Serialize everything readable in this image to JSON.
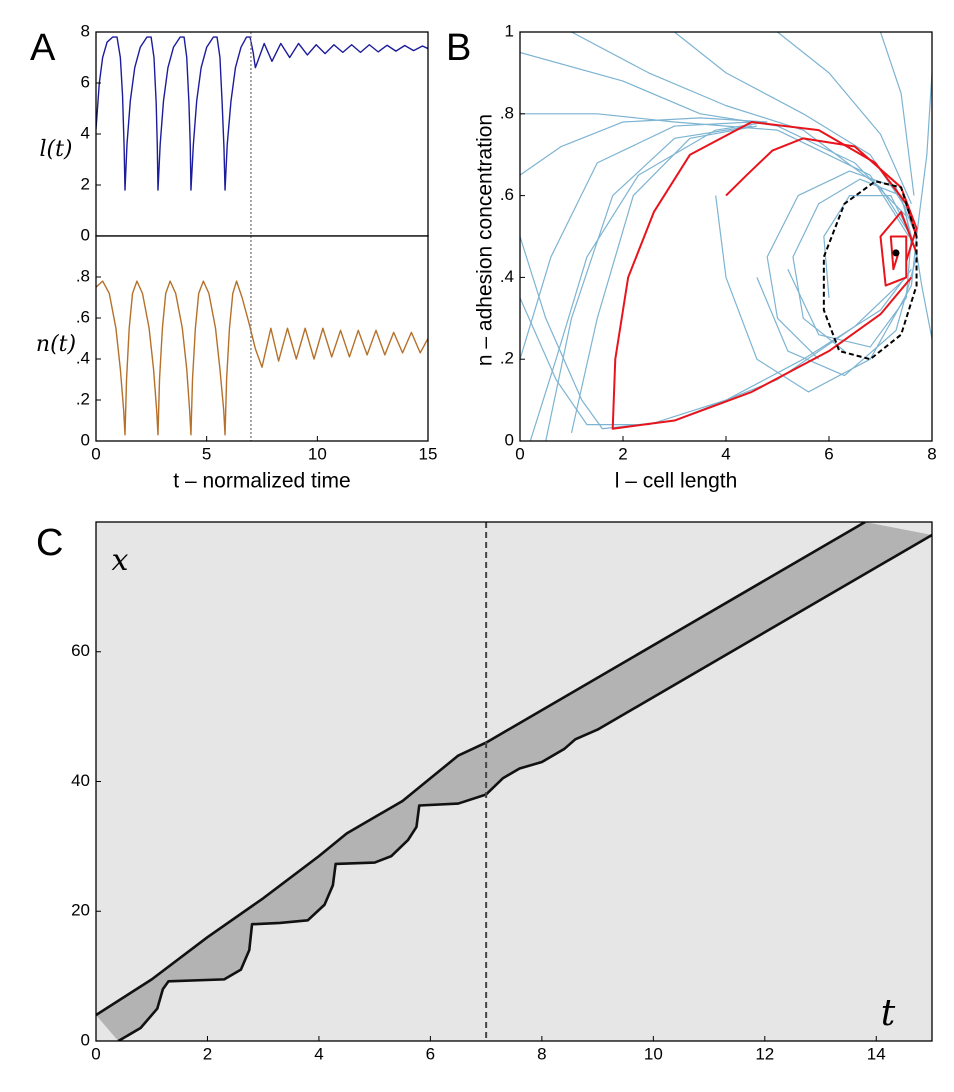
{
  "chart_data": [
    {
      "type": "line",
      "panel_label": "A",
      "ylabel": "l(t)",
      "xlim": [
        0,
        15
      ],
      "ylim": [
        0,
        8
      ],
      "yticks": [
        0,
        2,
        4,
        6,
        8
      ],
      "vline": 7,
      "background": "#ffffff",
      "series": [
        {
          "color": "#1c1c9c",
          "x": [
            0,
            0.15,
            0.3,
            0.5,
            0.75,
            0.95,
            1.1,
            1.2,
            1.27,
            1.31,
            1.4,
            1.55,
            1.75,
            2.0,
            2.3,
            2.49,
            2.62,
            2.72,
            2.77,
            2.8,
            2.9,
            3.05,
            3.25,
            3.5,
            3.8,
            3.98,
            4.1,
            4.2,
            4.26,
            4.29,
            4.4,
            4.55,
            4.75,
            5.0,
            5.3,
            5.47,
            5.6,
            5.7,
            5.78,
            5.83,
            5.93,
            6.1,
            6.3,
            6.55,
            6.8,
            6.96,
            7.1,
            7.2,
            7.6,
            7.95,
            8.35,
            8.75,
            9.15,
            9.55,
            9.95,
            10.35,
            10.75,
            11.15,
            11.55,
            11.95,
            12.35,
            12.75,
            13.15,
            13.55,
            13.95,
            14.35,
            14.75,
            15
          ],
          "values": [
            4.2,
            6.0,
            7.0,
            7.6,
            7.8,
            7.8,
            7.0,
            5.5,
            3.5,
            1.8,
            3.6,
            5.3,
            6.6,
            7.4,
            7.8,
            7.8,
            7.0,
            5.2,
            3.5,
            1.8,
            3.6,
            5.3,
            6.6,
            7.4,
            7.8,
            7.8,
            7.0,
            5.2,
            3.5,
            1.8,
            3.6,
            5.3,
            6.6,
            7.4,
            7.8,
            7.8,
            7.0,
            5.2,
            3.5,
            1.8,
            3.6,
            5.3,
            6.6,
            7.4,
            7.8,
            7.8,
            7.2,
            6.6,
            7.55,
            6.85,
            7.55,
            7.0,
            7.55,
            7.1,
            7.5,
            7.15,
            7.5,
            7.2,
            7.5,
            7.2,
            7.5,
            7.22,
            7.48,
            7.25,
            7.47,
            7.27,
            7.45,
            7.35
          ]
        }
      ]
    },
    {
      "type": "line",
      "ylabel": "n(t)",
      "xlabel": "t – normalized time",
      "xlim": [
        0,
        15
      ],
      "ylim": [
        0,
        1
      ],
      "xticks": [
        0,
        5,
        10,
        15
      ],
      "yticks": [
        0,
        {
          "value": 0.2,
          "label": ".2"
        },
        {
          "value": 0.4,
          "label": ".4"
        },
        {
          "value": 0.6,
          "label": ".6"
        },
        {
          "value": 0.8,
          "label": ".8"
        }
      ],
      "vline": 7,
      "background": "#ffffff",
      "series": [
        {
          "color": "#b5702a",
          "x": [
            0,
            0.3,
            0.6,
            0.9,
            1.1,
            1.25,
            1.31,
            1.38,
            1.5,
            1.65,
            1.85,
            2.1,
            2.4,
            2.6,
            2.74,
            2.8,
            2.87,
            3.0,
            3.15,
            3.35,
            3.6,
            3.9,
            4.1,
            4.23,
            4.29,
            4.36,
            4.49,
            4.64,
            4.85,
            5.1,
            5.4,
            5.6,
            5.77,
            5.83,
            5.9,
            6.03,
            6.18,
            6.35,
            6.6,
            6.9,
            7.2,
            7.5,
            7.9,
            8.25,
            8.65,
            9.05,
            9.45,
            9.85,
            10.25,
            10.65,
            11.05,
            11.45,
            11.85,
            12.25,
            12.65,
            13.05,
            13.45,
            13.85,
            14.25,
            14.65,
            15
          ],
          "values": [
            0.75,
            0.78,
            0.72,
            0.55,
            0.35,
            0.15,
            0.03,
            0.3,
            0.55,
            0.72,
            0.78,
            0.72,
            0.55,
            0.35,
            0.15,
            0.03,
            0.3,
            0.55,
            0.72,
            0.78,
            0.72,
            0.55,
            0.35,
            0.15,
            0.03,
            0.3,
            0.55,
            0.72,
            0.78,
            0.72,
            0.55,
            0.35,
            0.15,
            0.03,
            0.3,
            0.55,
            0.72,
            0.78,
            0.7,
            0.58,
            0.45,
            0.36,
            0.55,
            0.39,
            0.55,
            0.4,
            0.55,
            0.4,
            0.55,
            0.41,
            0.54,
            0.41,
            0.54,
            0.42,
            0.54,
            0.42,
            0.53,
            0.43,
            0.53,
            0.43,
            0.5
          ]
        }
      ]
    },
    {
      "type": "line",
      "panel_label": "B",
      "xlabel": "l – cell length",
      "ylabel": "n – adhesion concentration",
      "xlim": [
        0,
        8
      ],
      "ylim": [
        0,
        1
      ],
      "xticks": [
        0,
        2,
        4,
        6,
        8
      ],
      "yticks": [
        0,
        {
          "value": 0.2,
          "label": ".2"
        },
        {
          "value": 0.4,
          "label": ".4"
        },
        {
          "value": 0.6,
          "label": ".6"
        },
        {
          "value": 0.8,
          "label": ".8"
        },
        1
      ],
      "background": "#ffffff",
      "series": [
        {
          "color": "#7db4d2",
          "x": [
            0,
            2,
            3.5,
            5,
            6.5,
            7.5,
            7.6
          ],
          "values": [
            0.95,
            0.88,
            0.8,
            0.77,
            0.68,
            0.55,
            0.48
          ]
        },
        {
          "color": "#7db4d2",
          "x": [
            0,
            1.5,
            3,
            5,
            6.8,
            7.55
          ],
          "values": [
            0.8,
            0.8,
            0.78,
            0.76,
            0.65,
            0.5
          ]
        },
        {
          "color": "#7db4d2",
          "x": [
            1,
            2.5,
            4,
            5.5,
            7,
            7.6
          ],
          "values": [
            1,
            0.9,
            0.82,
            0.76,
            0.62,
            0.5
          ]
        },
        {
          "color": "#7db4d2",
          "x": [
            3,
            4,
            5.5,
            6.8,
            7.6
          ],
          "values": [
            1,
            0.9,
            0.8,
            0.7,
            0.55
          ]
        },
        {
          "color": "#7db4d2",
          "x": [
            5,
            6,
            7,
            7.6
          ],
          "values": [
            1,
            0.9,
            0.75,
            0.58
          ]
        },
        {
          "color": "#7db4d2",
          "x": [
            7,
            7.4,
            7.65
          ],
          "values": [
            1,
            0.85,
            0.6
          ]
        },
        {
          "color": "#7db4d2",
          "x": [
            8,
            7.9,
            7.7
          ],
          "values": [
            0.9,
            0.7,
            0.5
          ]
        },
        {
          "color": "#7db4d2",
          "x": [
            0,
            0.5,
            1.2,
            1.6,
            3,
            5,
            6.5,
            7.5
          ],
          "values": [
            0.5,
            0.3,
            0.1,
            0.03,
            0.05,
            0.15,
            0.28,
            0.4
          ]
        },
        {
          "color": "#7db4d2",
          "x": [
            0.5,
            1,
            1.8,
            3,
            4.5
          ],
          "values": [
            0,
            0.3,
            0.6,
            0.74,
            0.77
          ]
        },
        {
          "color": "#7db4d2",
          "x": [
            1,
            1.5,
            2.2,
            3.3,
            4.6
          ],
          "values": [
            0.02,
            0.3,
            0.6,
            0.74,
            0.77
          ]
        },
        {
          "color": "#7db4d2",
          "x": [
            0,
            0.6,
            1.5,
            3,
            4.5
          ],
          "values": [
            0.2,
            0.45,
            0.68,
            0.77,
            0.78
          ]
        },
        {
          "color": "#7db4d2",
          "x": [
            0,
            0.7,
            1.3,
            2.5,
            4,
            5.5,
            7,
            7.6
          ],
          "values": [
            0.35,
            0.15,
            0.04,
            0.04,
            0.1,
            0.2,
            0.32,
            0.42
          ]
        },
        {
          "color": "#7db4d2",
          "x": [
            0.2,
            0.7,
            1.3,
            2.3,
            3.8,
            4.8
          ],
          "values": [
            0,
            0.2,
            0.45,
            0.65,
            0.76,
            0.78
          ]
        },
        {
          "color": "#7db4d2",
          "x": [
            0,
            0.8,
            2,
            3.5,
            4.8
          ],
          "values": [
            0.65,
            0.72,
            0.78,
            0.79,
            0.78
          ]
        },
        {
          "color": "#7db4d2",
          "x": [
            8,
            7.8,
            7.7
          ],
          "values": [
            0.25,
            0.38,
            0.46
          ]
        },
        {
          "color": "#7db4d2",
          "x": [
            3.8,
            4,
            4.6,
            5.6,
            6.8,
            7.6,
            7.7,
            7.3,
            6.4,
            5.4,
            4.8,
            5,
            5.8
          ],
          "values": [
            0.6,
            0.4,
            0.2,
            0.12,
            0.2,
            0.38,
            0.5,
            0.62,
            0.66,
            0.6,
            0.45,
            0.3,
            0.2
          ]
        },
        {
          "color": "#7db4d2",
          "x": [
            4.6,
            5.2,
            6.3,
            7.3,
            7.7,
            7.4,
            6.6,
            5.8,
            5.3,
            5.5,
            6.3
          ],
          "values": [
            0.4,
            0.22,
            0.16,
            0.27,
            0.45,
            0.6,
            0.64,
            0.58,
            0.45,
            0.3,
            0.22
          ]
        },
        {
          "color": "#7db4d2",
          "x": [
            5.2,
            5.8,
            6.8,
            7.5,
            7.6,
            7.2,
            6.4,
            5.9,
            6
          ],
          "values": [
            0.42,
            0.26,
            0.23,
            0.35,
            0.5,
            0.6,
            0.6,
            0.5,
            0.35
          ]
        },
        {
          "color": "#e8141c",
          "x": [
            7.6,
            7,
            6,
            4.5,
            3,
            1.8,
            1.85,
            2.1,
            2.6,
            3.3,
            4.5,
            5.8,
            6.9,
            7.5,
            7.7
          ],
          "values": [
            0.4,
            0.31,
            0.22,
            0.12,
            0.05,
            0.03,
            0.2,
            0.4,
            0.56,
            0.7,
            0.78,
            0.76,
            0.68,
            0.58,
            0.5
          ]
        },
        {
          "color": "#e8141c",
          "x": [
            4,
            4.4,
            4.9,
            5.5,
            6.5,
            7.4,
            7.7,
            7.5
          ],
          "values": [
            0.6,
            0.65,
            0.71,
            0.74,
            0.72,
            0.62,
            0.52,
            0.44
          ]
        },
        {
          "color": "#e8141c",
          "x": [
            7.7,
            7.4,
            7,
            7.1,
            7.5,
            7.5,
            7.2,
            7.25,
            7.35
          ],
          "values": [
            0.46,
            0.56,
            0.5,
            0.38,
            0.4,
            0.5,
            0.5,
            0.42,
            0.46
          ]
        },
        {
          "color": "#000000",
          "dash": "dashed",
          "x": [
            7.7,
            7.4,
            6.9,
            6.3,
            5.9,
            5.9,
            6.2,
            6.8,
            7.4,
            7.7,
            7.7
          ],
          "values": [
            0.5,
            0.62,
            0.635,
            0.58,
            0.45,
            0.32,
            0.22,
            0.2,
            0.26,
            0.38,
            0.5
          ]
        },
        {
          "color": "#000000",
          "marker": "dot",
          "x": [
            7.3
          ],
          "values": [
            0.46
          ]
        }
      ]
    },
    {
      "type": "line",
      "panel_label": "C",
      "xlabel": "t",
      "ylabel": "x",
      "xlim": [
        0,
        15
      ],
      "ylim": [
        0,
        80
      ],
      "xticks": [
        0,
        2,
        4,
        6,
        8,
        10,
        12,
        14
      ],
      "yticks": [
        0,
        20,
        40,
        60
      ],
      "vline": 7,
      "background": "#e6e6e6",
      "fill_color": "#b3b3b3",
      "series": [
        {
          "color": "#111111",
          "x": [
            0,
            1,
            2,
            3,
            4,
            4.5,
            5.5,
            6,
            6.5,
            7,
            13.8
          ],
          "values": [
            4,
            9.5,
            16,
            22,
            28.5,
            32,
            37,
            40.5,
            44,
            46,
            80
          ]
        },
        {
          "color": "#111111",
          "x": [
            0.4,
            0.8,
            1.1,
            1.2,
            1.3,
            2.3,
            2.6,
            2.75,
            2.8,
            3.3,
            3.8,
            4.1,
            4.25,
            4.3,
            5.0,
            5.3,
            5.6,
            5.75,
            5.8,
            6.5,
            7,
            7.3,
            7.6,
            8,
            8.4,
            8.6,
            9,
            15
          ],
          "values": [
            0,
            2,
            5,
            8,
            9.2,
            9.5,
            11,
            14,
            18,
            18.2,
            18.6,
            21,
            24,
            27.3,
            27.5,
            28.5,
            31,
            33,
            36.3,
            36.6,
            38,
            40.5,
            42,
            43,
            45,
            46.5,
            48,
            78
          ]
        }
      ]
    }
  ]
}
